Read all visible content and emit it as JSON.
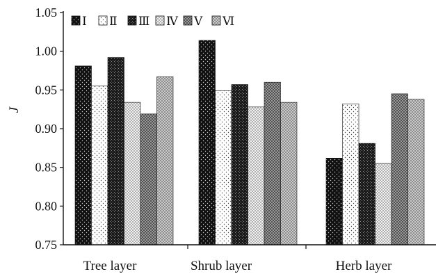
{
  "chart_data": {
    "type": "bar",
    "ylabel": "J",
    "xlabel": "",
    "title": "",
    "ylim": [
      0.75,
      1.05
    ],
    "yticks": [
      "0.75",
      "0.80",
      "0.85",
      "0.90",
      "0.95",
      "1.00",
      "1.05"
    ],
    "grid": false,
    "legend_position": "top-left",
    "categories": [
      "Tree layer",
      "Shrub layer",
      "Herb layer"
    ],
    "series": [
      {
        "name": "Ⅰ",
        "pattern": "black-dots",
        "color": "#111111",
        "values": [
          0.981,
          1.014,
          0.862
        ]
      },
      {
        "name": "Ⅱ",
        "pattern": "white-dots",
        "color": "#ffffff",
        "values": [
          0.955,
          0.949,
          0.932
        ]
      },
      {
        "name": "Ⅲ",
        "pattern": "dark-checker",
        "color": "#2b2b2b",
        "values": [
          0.992,
          0.957,
          0.881
        ]
      },
      {
        "name": "Ⅳ",
        "pattern": "light-checker",
        "color": "#dcdcdc",
        "values": [
          0.934,
          0.928,
          0.855
        ]
      },
      {
        "name": "Ⅴ",
        "pattern": "mid-checker",
        "color": "#777777",
        "values": [
          0.919,
          0.96,
          0.945
        ]
      },
      {
        "name": "Ⅵ",
        "pattern": "lightgray-checker",
        "color": "#a8a8a8",
        "values": [
          0.967,
          0.934,
          0.938
        ]
      }
    ]
  }
}
